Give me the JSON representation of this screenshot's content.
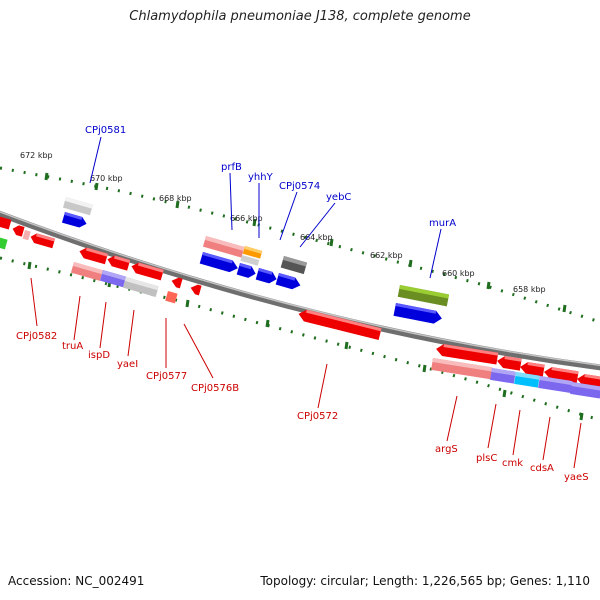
{
  "title": "Chlamydophila pneumoniae J138, complete genome",
  "footer": {
    "accession": "Accession: NC_002491",
    "summary": "Topology: circular; Length: 1,226,565 bp; Genes: 1,110"
  },
  "colors": {
    "background": "#ffffff",
    "backbone": "#7a7a7a",
    "tick": "#1f6e1f",
    "forward_label": "#0000cc",
    "reverse_label": "#cc0000",
    "cds_forward": "#0000dd",
    "cds_reverse": "#ee0000",
    "gene_reverse_light": "#f08080",
    "olive_gene": "#6b8e23",
    "orange_gene": "#ff9900",
    "purple_gene": "#7b68ee",
    "cyan_gene": "#00bfff",
    "grey_gene": "#c0c0c0",
    "dark_grey_gene": "#606060",
    "green_gene": "#33cc33"
  },
  "scale_labels": [
    "672 kbp",
    "670 kbp",
    "668 kbp",
    "666 kbp",
    "664 kbp",
    "662 kbp",
    "660 kbp",
    "658 kbp"
  ],
  "forward_genes": [
    "CPj0581",
    "prfB",
    "yhhY",
    "CPj0574",
    "yebC",
    "murA"
  ],
  "reverse_genes": [
    "CPj0582",
    "truA",
    "ispD",
    "yaeI",
    "CPj0577",
    "CPj0576B",
    "CPj0572",
    "argS",
    "plsC",
    "cmk",
    "cdsA",
    "yaeS"
  ]
}
